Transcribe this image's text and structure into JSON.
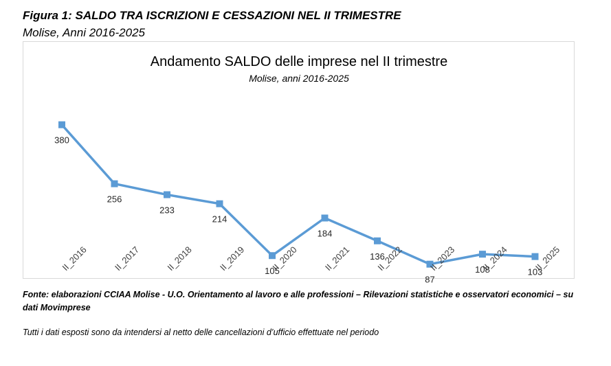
{
  "figure": {
    "title": "Figura 1: SALDO TRA ISCRIZIONI E CESSAZIONI NEL II TRIMESTRE",
    "subtitle": "Molise, Anni 2016-2025"
  },
  "chart_data": {
    "type": "line",
    "title": "Andamento SALDO delle imprese nel II trimestre",
    "subtitle": "Molise, anni 2016-2025",
    "categories": [
      "II_2016",
      "II_2017",
      "II_2018",
      "II_2019",
      "II_2020",
      "II_2021",
      "II_2022",
      "II_2023",
      "II_2024",
      "II_2025"
    ],
    "series": [
      {
        "values": [
          380,
          256,
          233,
          214,
          105,
          184,
          136,
          87,
          108,
          103
        ],
        "color": "#5b9bd5"
      }
    ],
    "xlabel": "",
    "ylabel": "",
    "ylim": [
      0,
      400
    ],
    "grid": false,
    "legend": "none",
    "data_labels": "below"
  },
  "footer": {
    "source": "Fonte: elaborazioni CCIAA Molise - U.O. Orientamento al lavoro e alle professioni – Rilevazioni statistiche e osservatori economici – su dati Movimprese",
    "note": "Tutti i dati esposti sono da intendersi al netto delle cancellazioni d’ufficio effettuate nel periodo"
  }
}
